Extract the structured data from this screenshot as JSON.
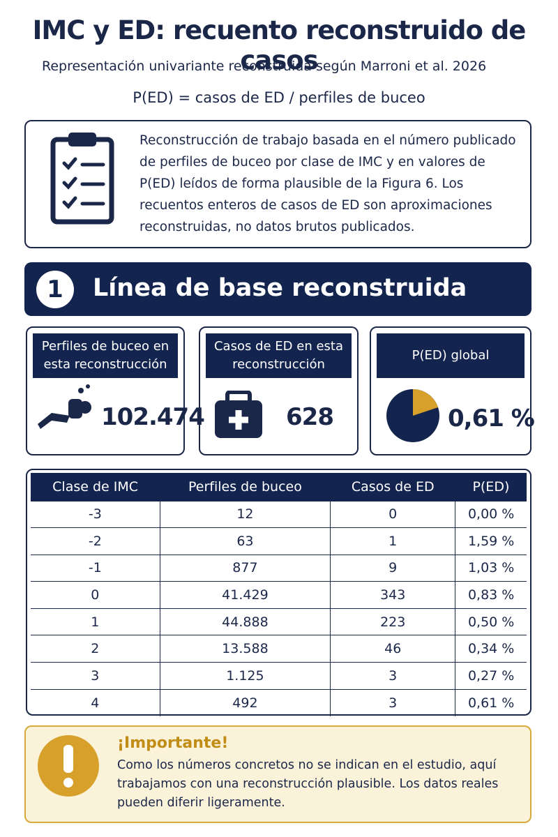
{
  "header": {
    "title": "IMC y ED: recuento reconstruido de casos",
    "subtitle": "Representación univariante reconstruida según Marroni et al. 2026",
    "formula": "P(ED) = casos de ED / perfiles de buceo"
  },
  "note": {
    "text": "Reconstrucción de trabajo basada en el número publicado de perfiles de buceo por clase de IMC y en valores de P(ED) leídos de forma plausible de la Figura 6. Los recuentos enteros de casos de ED son aproximaciones reconstruidas, no datos brutos publicados."
  },
  "section": {
    "number": "1",
    "title": "Línea de base reconstruida"
  },
  "stats": [
    {
      "label": "Perfiles de buceo en esta reconstrucción",
      "value": "102.474"
    },
    {
      "label": "Casos de ED en esta reconstrucción",
      "value": "628"
    },
    {
      "label": "P(ED) global",
      "value": "0,61 %"
    }
  ],
  "table": {
    "headers": [
      "Clase de IMC",
      "Perfiles de buceo",
      "Casos de ED",
      "P(ED)"
    ],
    "rows": [
      [
        "-3",
        "12",
        "0",
        "0,00 %"
      ],
      [
        "-2",
        "63",
        "1",
        "1,59 %"
      ],
      [
        "-1",
        "877",
        "9",
        "1,03 %"
      ],
      [
        "0",
        "41.429",
        "343",
        "0,83 %"
      ],
      [
        "1",
        "44.888",
        "223",
        "0,50 %"
      ],
      [
        "2",
        "13.588",
        "46",
        "0,34 %"
      ],
      [
        "3",
        "1.125",
        "3",
        "0,27 %"
      ],
      [
        "4",
        "492",
        "3",
        "0,61 %"
      ]
    ]
  },
  "important": {
    "title": "¡Importante!",
    "text": "Como los números concretos no se indican en el estudio, aquí trabajamos con una reconstrucción plausible. Los datos reales pueden diferir ligeramente."
  }
}
